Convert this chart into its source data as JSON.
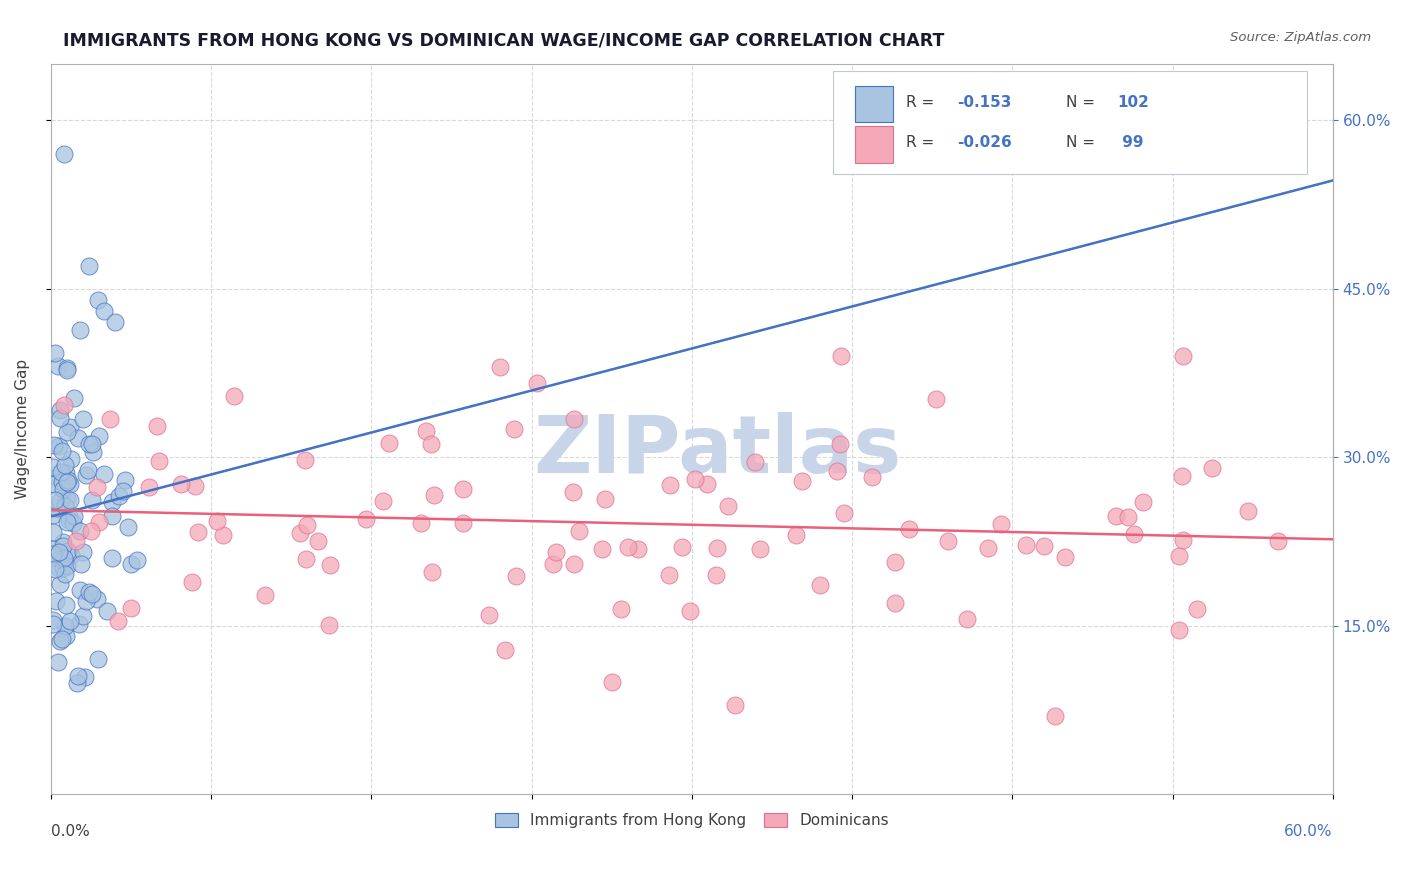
{
  "title": "IMMIGRANTS FROM HONG KONG VS DOMINICAN WAGE/INCOME GAP CORRELATION CHART",
  "source": "Source: ZipAtlas.com",
  "ylabel": "Wage/Income Gap",
  "right_yticks": [
    "60.0%",
    "45.0%",
    "30.0%",
    "15.0%"
  ],
  "right_ytick_vals": [
    0.6,
    0.45,
    0.3,
    0.15
  ],
  "legend_label_hk": "Immigrants from Hong Kong",
  "legend_label_dom": "Dominicans",
  "color_hk": "#a8c4e0",
  "color_dom": "#f4a8b8",
  "color_hk_line": "#4472c4",
  "color_dom_line": "#e8607a",
  "color_text_blue": "#4472c4",
  "color_text_dark": "#404040",
  "background_color": "#ffffff",
  "xlim": [
    0.0,
    0.6
  ],
  "ylim": [
    0.0,
    0.65
  ],
  "watermark": "ZIPatlas",
  "watermark_color": "#c8d4e8"
}
